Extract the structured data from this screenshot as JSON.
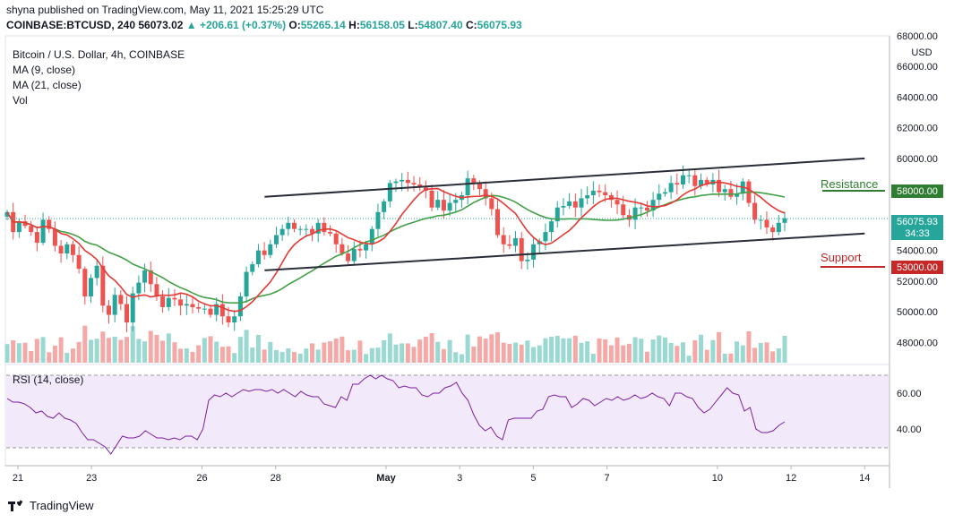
{
  "header": {
    "publish": "shyna published on TradingView.com, May 11, 2021 15:25:29 UTC",
    "ticker": "COINBASE:BTCUSD, 240",
    "price": "56073.02",
    "change": "▲ +206.61 (+0.37%)",
    "o_label": "O:",
    "o": "55265.14",
    "h_label": "H:",
    "h": "56158.05",
    "l_label": "L:",
    "l": "54807.40",
    "c_label": "C:",
    "c": "56075.93"
  },
  "legend": {
    "title": "Bitcoin / U.S. Dollar, 4h, COINBASE",
    "ma9": "MA (9, close)",
    "ma21": "MA (21, close)",
    "vol": "Vol"
  },
  "price_axis": {
    "currency": "USD",
    "ticks": [
      "68000.00",
      "66000.00",
      "64000.00",
      "62000.00",
      "60000.00",
      "58000.00",
      "56000.00",
      "54000.00",
      "52000.00",
      "50000.00",
      "48000.00"
    ]
  },
  "labels": {
    "current_price": "56075.93",
    "countdown": "34:33",
    "resistance_text": "Resistance",
    "resistance_value": "58000.00",
    "support_text": "Support",
    "support_value": "53000.00"
  },
  "rsi": {
    "title": "RSI (14, close)",
    "ticks": [
      "60.00",
      "40.00"
    ]
  },
  "time_axis": {
    "ticks": [
      "21",
      "23",
      "26",
      "28",
      "May",
      "3",
      "5",
      "7",
      "10",
      "12",
      "14"
    ]
  },
  "footer": {
    "brand": "TradingView"
  },
  "colors": {
    "up": "#26a69a",
    "down": "#ef5350",
    "ma9": "#e53935",
    "ma21": "#43a047",
    "channel": "#2a2e39",
    "resistance": "#2e7d32",
    "support": "#c62828",
    "rsi_line": "#7b1fa2",
    "rsi_band": "#ede0fa"
  },
  "chart_data": {
    "type": "candlestick",
    "title": "Bitcoin / U.S. Dollar, 4h, COINBASE",
    "ylim": [
      46500,
      68000
    ],
    "x_ticks": [
      "21",
      "23",
      "26",
      "28",
      "May",
      "3",
      "5",
      "7",
      "10",
      "12",
      "14"
    ],
    "resistance": 58000,
    "support": 53000,
    "last_close": 56075.93,
    "channel_lower": [
      [
        27.7,
        52700
      ],
      [
        44.0,
        55100
      ]
    ],
    "channel_upper": [
      [
        27.7,
        57500
      ],
      [
        44.0,
        60000
      ]
    ],
    "series_close": [
      56500,
      55200,
      55900,
      55600,
      55200,
      54500,
      56000,
      55400,
      54300,
      53800,
      54400,
      53700,
      52800,
      51000,
      52200,
      53000,
      50400,
      49800,
      51100,
      50500,
      49300,
      51200,
      51900,
      52700,
      51800,
      51000,
      50300,
      50900,
      50800,
      50400,
      50500,
      50300,
      50200,
      50200,
      49800,
      50500,
      49700,
      49300,
      49700,
      51000,
      52600,
      53100,
      54000,
      53700,
      54400,
      55000,
      55400,
      55800,
      55400,
      55400,
      55400,
      55100,
      55800,
      55200,
      55100,
      54400,
      53800,
      53300,
      54100,
      54000,
      54400,
      55400,
      56500,
      57200,
      58400,
      58500,
      58600,
      58400,
      58300,
      58100,
      57900,
      56800,
      57300,
      56600,
      57100,
      57300,
      57600,
      58700,
      58400,
      58000,
      57400,
      56700,
      55000,
      54400,
      54300,
      54800,
      53300,
      53400,
      54400,
      54600,
      55200,
      55900,
      56800,
      56900,
      57200,
      56800,
      57400,
      57600,
      57900,
      57800,
      57600,
      57300,
      57000,
      56300,
      56000,
      56800,
      56800,
      56600,
      57300,
      57700,
      57800,
      58400,
      58300,
      58900,
      58900,
      58200,
      58600,
      58300,
      58600,
      57800,
      58000,
      57500,
      57700,
      58500,
      57100,
      56000,
      56000,
      55500,
      55200,
      55800,
      56100
    ],
    "rsi_values": [
      57,
      55,
      55,
      54,
      52,
      49,
      50,
      47,
      46,
      49,
      46,
      45,
      43,
      38,
      34,
      34,
      32,
      30,
      26,
      31,
      36,
      35,
      35,
      36,
      39,
      37,
      35,
      35,
      34,
      35,
      34,
      36,
      36,
      34,
      40,
      56,
      59,
      58,
      60,
      58,
      60,
      62,
      61,
      62,
      62,
      61,
      62,
      60,
      62,
      60,
      58,
      61,
      59,
      58,
      58,
      54,
      53,
      52,
      58,
      56,
      65,
      65,
      68,
      70,
      68,
      70,
      68,
      67,
      63,
      64,
      63,
      63,
      59,
      58,
      60,
      60,
      63,
      64,
      66,
      60,
      56,
      48,
      42,
      39,
      41,
      36,
      34,
      45,
      46,
      46,
      46,
      46,
      50,
      51,
      58,
      59,
      58,
      58,
      52,
      54,
      57,
      56,
      53,
      55,
      57,
      56,
      58,
      56,
      57,
      59,
      57,
      58,
      60,
      58,
      57,
      53,
      60,
      60,
      58,
      57,
      52,
      49,
      51,
      55,
      59,
      63,
      60,
      59,
      50,
      52,
      40,
      38,
      38,
      39,
      42,
      44
    ]
  }
}
